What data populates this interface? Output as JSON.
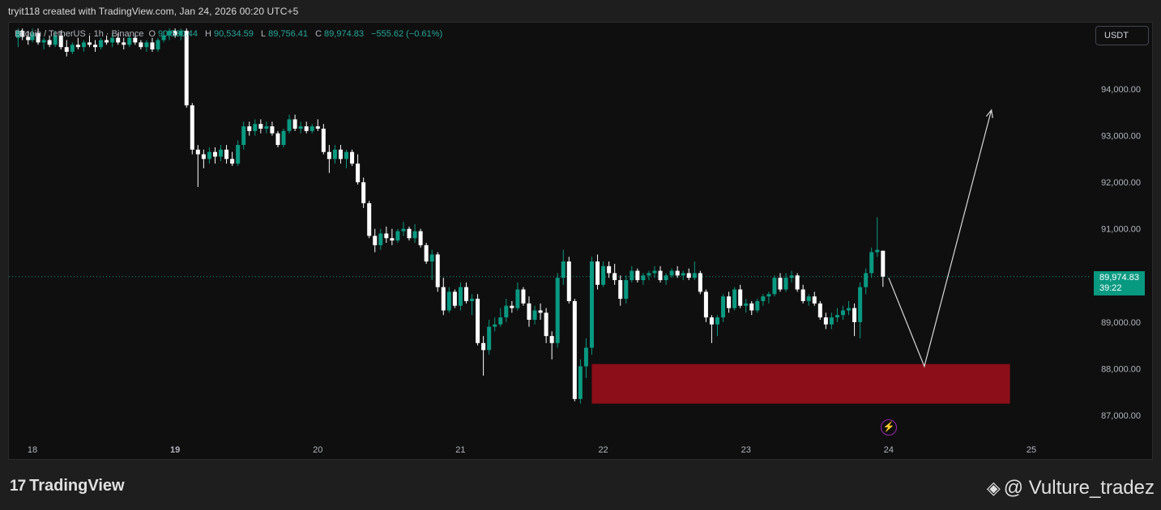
{
  "caption": "tryit118 created with TradingView.com, Jan 24, 2026 00:20 UTC+5",
  "legend": {
    "symbol": "Bitcoin / TetherUS · 1h · Binance",
    "o_label": "O",
    "o_value": "90,530.44",
    "h_label": "H",
    "h_value": "90,534.59",
    "l_label": "L",
    "l_value": "89,756.41",
    "c_label": "C",
    "c_value": "89,974.83",
    "change": "−555.62 (−0.61%)"
  },
  "currency_button": "USDT",
  "price_tag": {
    "price": "89,974.83",
    "countdown": "39:22"
  },
  "brand": {
    "mark": "17",
    "name": "TradingView"
  },
  "watermark": {
    "symbol": "◈",
    "handle": "@ Vulture_tradez"
  },
  "badge_icon": "lightning-bolt-icon",
  "colors": {
    "up": "#089981",
    "down": "#ffffff",
    "zone": "#8b0e19",
    "arrow": "#d9d9d9"
  },
  "chart_data": {
    "type": "candlestick",
    "title": "Bitcoin / TetherUS · 1h · Binance",
    "ylim": [
      86600,
      95300
    ],
    "yticks": [
      87000,
      88000,
      89000,
      90000,
      91000,
      92000,
      93000,
      94000
    ],
    "ytick_labels": [
      "87,000.00",
      "88,000.00",
      "89,000.00",
      "",
      "91,000.00",
      "92,000.00",
      "93,000.00",
      "94,000.00"
    ],
    "xticks": [
      "18",
      "19",
      "20",
      "21",
      "22",
      "23",
      "24",
      "25"
    ],
    "x_range": [
      17.9,
      25.7
    ],
    "current_price": 89974.83,
    "demand_zone": {
      "x_start": 21.92,
      "x_end": 24.85,
      "y_low": 87250,
      "y_high": 88100
    },
    "projection_path": [
      {
        "x": 24.0,
        "y": 89950
      },
      {
        "x": 24.25,
        "y": 88050
      },
      {
        "x": 24.72,
        "y": 93550
      }
    ],
    "candles": [
      {
        "x": 17.9,
        "o": 95100,
        "h": 95300,
        "l": 94900,
        "c": 95250
      },
      {
        "x": 17.93,
        "o": 95250,
        "h": 95300,
        "l": 95050,
        "c": 95120
      },
      {
        "x": 17.97,
        "o": 95120,
        "h": 95250,
        "l": 94950,
        "c": 95050
      },
      {
        "x": 18.0,
        "o": 95050,
        "h": 95300,
        "l": 95000,
        "c": 95200
      },
      {
        "x": 18.04,
        "o": 95200,
        "h": 95300,
        "l": 94950,
        "c": 95000
      },
      {
        "x": 18.08,
        "o": 95000,
        "h": 95100,
        "l": 94850,
        "c": 95050
      },
      {
        "x": 18.12,
        "o": 95050,
        "h": 95150,
        "l": 94900,
        "c": 94950
      },
      {
        "x": 18.16,
        "o": 94950,
        "h": 95250,
        "l": 94900,
        "c": 95150
      },
      {
        "x": 18.2,
        "o": 95150,
        "h": 95250,
        "l": 94850,
        "c": 94900
      },
      {
        "x": 18.24,
        "o": 94900,
        "h": 95050,
        "l": 94700,
        "c": 94800
      },
      {
        "x": 18.28,
        "o": 94800,
        "h": 95000,
        "l": 94750,
        "c": 94950
      },
      {
        "x": 18.32,
        "o": 94950,
        "h": 95100,
        "l": 94850,
        "c": 94900
      },
      {
        "x": 18.36,
        "o": 94900,
        "h": 95050,
        "l": 94800,
        "c": 95000
      },
      {
        "x": 18.4,
        "o": 95000,
        "h": 95150,
        "l": 94900,
        "c": 94950
      },
      {
        "x": 18.44,
        "o": 94950,
        "h": 95050,
        "l": 94800,
        "c": 94900
      },
      {
        "x": 18.48,
        "o": 94900,
        "h": 95100,
        "l": 94850,
        "c": 95050
      },
      {
        "x": 18.52,
        "o": 95050,
        "h": 95150,
        "l": 94950,
        "c": 95000
      },
      {
        "x": 18.56,
        "o": 95000,
        "h": 95200,
        "l": 94900,
        "c": 95100
      },
      {
        "x": 18.6,
        "o": 95100,
        "h": 95200,
        "l": 94950,
        "c": 95000
      },
      {
        "x": 18.64,
        "o": 95000,
        "h": 95100,
        "l": 94850,
        "c": 94950
      },
      {
        "x": 18.68,
        "o": 94950,
        "h": 95150,
        "l": 94900,
        "c": 95100
      },
      {
        "x": 18.72,
        "o": 95100,
        "h": 95200,
        "l": 94950,
        "c": 95000
      },
      {
        "x": 18.76,
        "o": 95000,
        "h": 95050,
        "l": 94850,
        "c": 94900
      },
      {
        "x": 18.8,
        "o": 94900,
        "h": 95050,
        "l": 94800,
        "c": 95000
      },
      {
        "x": 18.84,
        "o": 95000,
        "h": 95100,
        "l": 94800,
        "c": 94850
      },
      {
        "x": 18.88,
        "o": 94850,
        "h": 95100,
        "l": 94800,
        "c": 95050
      },
      {
        "x": 18.92,
        "o": 95050,
        "h": 95250,
        "l": 95000,
        "c": 95150
      },
      {
        "x": 18.96,
        "o": 95150,
        "h": 95300,
        "l": 95050,
        "c": 95250
      },
      {
        "x": 19.0,
        "o": 95250,
        "h": 95300,
        "l": 95100,
        "c": 95150
      },
      {
        "x": 19.04,
        "o": 95150,
        "h": 95300,
        "l": 95050,
        "c": 95250
      },
      {
        "x": 19.08,
        "o": 95250,
        "h": 95300,
        "l": 93600,
        "c": 93650
      },
      {
        "x": 19.12,
        "o": 93650,
        "h": 93700,
        "l": 92600,
        "c": 92700
      },
      {
        "x": 19.16,
        "o": 92700,
        "h": 92800,
        "l": 91900,
        "c": 92600
      },
      {
        "x": 19.2,
        "o": 92600,
        "h": 92700,
        "l": 92300,
        "c": 92500
      },
      {
        "x": 19.24,
        "o": 92500,
        "h": 92750,
        "l": 92400,
        "c": 92650
      },
      {
        "x": 19.28,
        "o": 92650,
        "h": 92750,
        "l": 92400,
        "c": 92550
      },
      {
        "x": 19.32,
        "o": 92550,
        "h": 92800,
        "l": 92450,
        "c": 92700
      },
      {
        "x": 19.36,
        "o": 92700,
        "h": 92800,
        "l": 92400,
        "c": 92500
      },
      {
        "x": 19.4,
        "o": 92500,
        "h": 92650,
        "l": 92350,
        "c": 92400
      },
      {
        "x": 19.44,
        "o": 92400,
        "h": 92900,
        "l": 92350,
        "c": 92800
      },
      {
        "x": 19.48,
        "o": 92800,
        "h": 93300,
        "l": 92700,
        "c": 93200
      },
      {
        "x": 19.52,
        "o": 93200,
        "h": 93300,
        "l": 93000,
        "c": 93100
      },
      {
        "x": 19.56,
        "o": 93100,
        "h": 93350,
        "l": 93000,
        "c": 93250
      },
      {
        "x": 19.6,
        "o": 93250,
        "h": 93350,
        "l": 93050,
        "c": 93150
      },
      {
        "x": 19.64,
        "o": 93150,
        "h": 93300,
        "l": 93050,
        "c": 93200
      },
      {
        "x": 19.68,
        "o": 93200,
        "h": 93300,
        "l": 93000,
        "c": 93050
      },
      {
        "x": 19.72,
        "o": 93050,
        "h": 93100,
        "l": 92750,
        "c": 92800
      },
      {
        "x": 19.76,
        "o": 92800,
        "h": 93150,
        "l": 92750,
        "c": 93100
      },
      {
        "x": 19.8,
        "o": 93100,
        "h": 93450,
        "l": 93050,
        "c": 93350
      },
      {
        "x": 19.84,
        "o": 93350,
        "h": 93450,
        "l": 93100,
        "c": 93150
      },
      {
        "x": 19.88,
        "o": 93150,
        "h": 93300,
        "l": 93050,
        "c": 93200
      },
      {
        "x": 19.92,
        "o": 93200,
        "h": 93300,
        "l": 93050,
        "c": 93100
      },
      {
        "x": 19.96,
        "o": 93100,
        "h": 93250,
        "l": 93050,
        "c": 93200
      },
      {
        "x": 20.0,
        "o": 93200,
        "h": 93350,
        "l": 93100,
        "c": 93150
      },
      {
        "x": 20.04,
        "o": 93150,
        "h": 93250,
        "l": 92600,
        "c": 92650
      },
      {
        "x": 20.08,
        "o": 92650,
        "h": 92800,
        "l": 92200,
        "c": 92500
      },
      {
        "x": 20.12,
        "o": 92500,
        "h": 92800,
        "l": 92400,
        "c": 92700
      },
      {
        "x": 20.16,
        "o": 92700,
        "h": 92800,
        "l": 92400,
        "c": 92500
      },
      {
        "x": 20.2,
        "o": 92500,
        "h": 92700,
        "l": 92300,
        "c": 92650
      },
      {
        "x": 20.24,
        "o": 92650,
        "h": 92700,
        "l": 92350,
        "c": 92400
      },
      {
        "x": 20.28,
        "o": 92400,
        "h": 92600,
        "l": 91950,
        "c": 92000
      },
      {
        "x": 20.32,
        "o": 92000,
        "h": 92100,
        "l": 91450,
        "c": 91550
      },
      {
        "x": 20.36,
        "o": 91550,
        "h": 91600,
        "l": 90800,
        "c": 90850
      },
      {
        "x": 20.4,
        "o": 90850,
        "h": 91000,
        "l": 90500,
        "c": 90650
      },
      {
        "x": 20.44,
        "o": 90650,
        "h": 91000,
        "l": 90550,
        "c": 90900
      },
      {
        "x": 20.48,
        "o": 90900,
        "h": 91050,
        "l": 90700,
        "c": 90800
      },
      {
        "x": 20.52,
        "o": 90800,
        "h": 91000,
        "l": 90650,
        "c": 90750
      },
      {
        "x": 20.56,
        "o": 90750,
        "h": 91000,
        "l": 90700,
        "c": 90950
      },
      {
        "x": 20.6,
        "o": 90950,
        "h": 91150,
        "l": 90850,
        "c": 91000
      },
      {
        "x": 20.64,
        "o": 91000,
        "h": 91050,
        "l": 90750,
        "c": 90800
      },
      {
        "x": 20.68,
        "o": 90800,
        "h": 91100,
        "l": 90700,
        "c": 90950
      },
      {
        "x": 20.72,
        "o": 90950,
        "h": 91000,
        "l": 90600,
        "c": 90650
      },
      {
        "x": 20.76,
        "o": 90650,
        "h": 90700,
        "l": 90250,
        "c": 90300
      },
      {
        "x": 20.8,
        "o": 90300,
        "h": 90550,
        "l": 89900,
        "c": 90450
      },
      {
        "x": 20.84,
        "o": 90450,
        "h": 90500,
        "l": 89650,
        "c": 89750
      },
      {
        "x": 20.88,
        "o": 89750,
        "h": 89950,
        "l": 89150,
        "c": 89250
      },
      {
        "x": 20.92,
        "o": 89250,
        "h": 89750,
        "l": 89200,
        "c": 89650
      },
      {
        "x": 20.96,
        "o": 89650,
        "h": 89700,
        "l": 89300,
        "c": 89350
      },
      {
        "x": 21.0,
        "o": 89350,
        "h": 89850,
        "l": 89250,
        "c": 89750
      },
      {
        "x": 21.04,
        "o": 89750,
        "h": 89850,
        "l": 89400,
        "c": 89450
      },
      {
        "x": 21.08,
        "o": 89450,
        "h": 89600,
        "l": 89150,
        "c": 89500
      },
      {
        "x": 21.12,
        "o": 89500,
        "h": 89600,
        "l": 88500,
        "c": 88550
      },
      {
        "x": 21.16,
        "o": 88550,
        "h": 88700,
        "l": 87850,
        "c": 88400
      },
      {
        "x": 21.2,
        "o": 88400,
        "h": 89050,
        "l": 88300,
        "c": 88900
      },
      {
        "x": 21.24,
        "o": 88900,
        "h": 89100,
        "l": 88800,
        "c": 88950
      },
      {
        "x": 21.28,
        "o": 88950,
        "h": 89300,
        "l": 88900,
        "c": 89100
      },
      {
        "x": 21.32,
        "o": 89100,
        "h": 89500,
        "l": 89000,
        "c": 89350
      },
      {
        "x": 21.36,
        "o": 89350,
        "h": 89450,
        "l": 89200,
        "c": 89300
      },
      {
        "x": 21.4,
        "o": 89300,
        "h": 89850,
        "l": 89250,
        "c": 89700
      },
      {
        "x": 21.44,
        "o": 89700,
        "h": 89750,
        "l": 89350,
        "c": 89400
      },
      {
        "x": 21.48,
        "o": 89400,
        "h": 89550,
        "l": 88900,
        "c": 89050
      },
      {
        "x": 21.52,
        "o": 89050,
        "h": 89350,
        "l": 88950,
        "c": 89250
      },
      {
        "x": 21.56,
        "o": 89250,
        "h": 89400,
        "l": 89050,
        "c": 89200
      },
      {
        "x": 21.6,
        "o": 89200,
        "h": 89300,
        "l": 88550,
        "c": 88700
      },
      {
        "x": 21.64,
        "o": 88700,
        "h": 88800,
        "l": 88200,
        "c": 88550
      },
      {
        "x": 21.68,
        "o": 88550,
        "h": 90050,
        "l": 88450,
        "c": 89950
      },
      {
        "x": 21.72,
        "o": 89950,
        "h": 90550,
        "l": 89800,
        "c": 90300
      },
      {
        "x": 21.76,
        "o": 90300,
        "h": 90400,
        "l": 89400,
        "c": 89450
      },
      {
        "x": 21.8,
        "o": 89450,
        "h": 89500,
        "l": 87300,
        "c": 87350
      },
      {
        "x": 21.84,
        "o": 87350,
        "h": 88200,
        "l": 87250,
        "c": 88050
      },
      {
        "x": 21.88,
        "o": 88050,
        "h": 88650,
        "l": 87800,
        "c": 88450
      },
      {
        "x": 21.92,
        "o": 88450,
        "h": 90400,
        "l": 88300,
        "c": 90300
      },
      {
        "x": 21.96,
        "o": 90300,
        "h": 90450,
        "l": 89700,
        "c": 89800
      },
      {
        "x": 22.0,
        "o": 89800,
        "h": 90300,
        "l": 89750,
        "c": 90200
      },
      {
        "x": 22.04,
        "o": 90200,
        "h": 90300,
        "l": 89950,
        "c": 90050
      },
      {
        "x": 22.08,
        "o": 90050,
        "h": 90250,
        "l": 89800,
        "c": 89900
      },
      {
        "x": 22.12,
        "o": 89900,
        "h": 90000,
        "l": 89350,
        "c": 89500
      },
      {
        "x": 22.16,
        "o": 89500,
        "h": 90000,
        "l": 89400,
        "c": 89900
      },
      {
        "x": 22.2,
        "o": 89900,
        "h": 90200,
        "l": 89850,
        "c": 90100
      },
      {
        "x": 22.24,
        "o": 90100,
        "h": 90150,
        "l": 89850,
        "c": 89900
      },
      {
        "x": 22.28,
        "o": 89900,
        "h": 90050,
        "l": 89800,
        "c": 90000
      },
      {
        "x": 22.32,
        "o": 90000,
        "h": 90100,
        "l": 89900,
        "c": 90050
      },
      {
        "x": 22.36,
        "o": 90050,
        "h": 90200,
        "l": 89950,
        "c": 90100
      },
      {
        "x": 22.4,
        "o": 90100,
        "h": 90200,
        "l": 89850,
        "c": 89900
      },
      {
        "x": 22.44,
        "o": 89900,
        "h": 90050,
        "l": 89800,
        "c": 90000
      },
      {
        "x": 22.48,
        "o": 90000,
        "h": 90150,
        "l": 89950,
        "c": 90100
      },
      {
        "x": 22.52,
        "o": 90100,
        "h": 90200,
        "l": 89950,
        "c": 90000
      },
      {
        "x": 22.56,
        "o": 90000,
        "h": 90100,
        "l": 89900,
        "c": 90050
      },
      {
        "x": 22.6,
        "o": 90050,
        "h": 90150,
        "l": 89900,
        "c": 89950
      },
      {
        "x": 22.64,
        "o": 89950,
        "h": 90300,
        "l": 89900,
        "c": 90050
      },
      {
        "x": 22.68,
        "o": 90050,
        "h": 90100,
        "l": 89600,
        "c": 89650
      },
      {
        "x": 22.72,
        "o": 89650,
        "h": 89700,
        "l": 89000,
        "c": 89100
      },
      {
        "x": 22.76,
        "o": 89100,
        "h": 89150,
        "l": 88550,
        "c": 88950
      },
      {
        "x": 22.8,
        "o": 88950,
        "h": 89150,
        "l": 88700,
        "c": 89100
      },
      {
        "x": 22.84,
        "o": 89100,
        "h": 89600,
        "l": 89000,
        "c": 89550
      },
      {
        "x": 22.88,
        "o": 89550,
        "h": 89650,
        "l": 89200,
        "c": 89300
      },
      {
        "x": 22.92,
        "o": 89300,
        "h": 89750,
        "l": 89250,
        "c": 89700
      },
      {
        "x": 22.96,
        "o": 89700,
        "h": 89800,
        "l": 89300,
        "c": 89350
      },
      {
        "x": 23.0,
        "o": 89350,
        "h": 89500,
        "l": 89200,
        "c": 89400
      },
      {
        "x": 23.04,
        "o": 89400,
        "h": 89450,
        "l": 89150,
        "c": 89250
      },
      {
        "x": 23.08,
        "o": 89250,
        "h": 89500,
        "l": 89200,
        "c": 89450
      },
      {
        "x": 23.12,
        "o": 89450,
        "h": 89600,
        "l": 89350,
        "c": 89550
      },
      {
        "x": 23.16,
        "o": 89550,
        "h": 89650,
        "l": 89400,
        "c": 89600
      },
      {
        "x": 23.2,
        "o": 89600,
        "h": 90000,
        "l": 89550,
        "c": 89950
      },
      {
        "x": 23.24,
        "o": 89950,
        "h": 90050,
        "l": 89650,
        "c": 89700
      },
      {
        "x": 23.28,
        "o": 89700,
        "h": 90050,
        "l": 89650,
        "c": 89950
      },
      {
        "x": 23.32,
        "o": 89950,
        "h": 90100,
        "l": 89850,
        "c": 90000
      },
      {
        "x": 23.36,
        "o": 90000,
        "h": 90050,
        "l": 89650,
        "c": 89700
      },
      {
        "x": 23.4,
        "o": 89700,
        "h": 89800,
        "l": 89400,
        "c": 89450
      },
      {
        "x": 23.44,
        "o": 89450,
        "h": 89600,
        "l": 89350,
        "c": 89550
      },
      {
        "x": 23.48,
        "o": 89550,
        "h": 89650,
        "l": 89350,
        "c": 89400
      },
      {
        "x": 23.52,
        "o": 89400,
        "h": 89450,
        "l": 89050,
        "c": 89100
      },
      {
        "x": 23.56,
        "o": 89100,
        "h": 89200,
        "l": 88850,
        "c": 88950
      },
      {
        "x": 23.6,
        "o": 88950,
        "h": 89200,
        "l": 88850,
        "c": 89100
      },
      {
        "x": 23.64,
        "o": 89100,
        "h": 89300,
        "l": 89000,
        "c": 89150
      },
      {
        "x": 23.68,
        "o": 89150,
        "h": 89350,
        "l": 89050,
        "c": 89250
      },
      {
        "x": 23.72,
        "o": 89250,
        "h": 89450,
        "l": 89150,
        "c": 89300
      },
      {
        "x": 23.76,
        "o": 89300,
        "h": 89400,
        "l": 88700,
        "c": 89000
      },
      {
        "x": 23.8,
        "o": 89000,
        "h": 89850,
        "l": 88650,
        "c": 89750
      },
      {
        "x": 23.84,
        "o": 89750,
        "h": 90150,
        "l": 89600,
        "c": 90050
      },
      {
        "x": 23.88,
        "o": 90050,
        "h": 90600,
        "l": 89950,
        "c": 90500
      },
      {
        "x": 23.92,
        "o": 90500,
        "h": 91250,
        "l": 90400,
        "c": 90550
      },
      {
        "x": 23.96,
        "o": 90530.44,
        "h": 90534.59,
        "l": 89756.41,
        "c": 89974.83
      }
    ]
  }
}
